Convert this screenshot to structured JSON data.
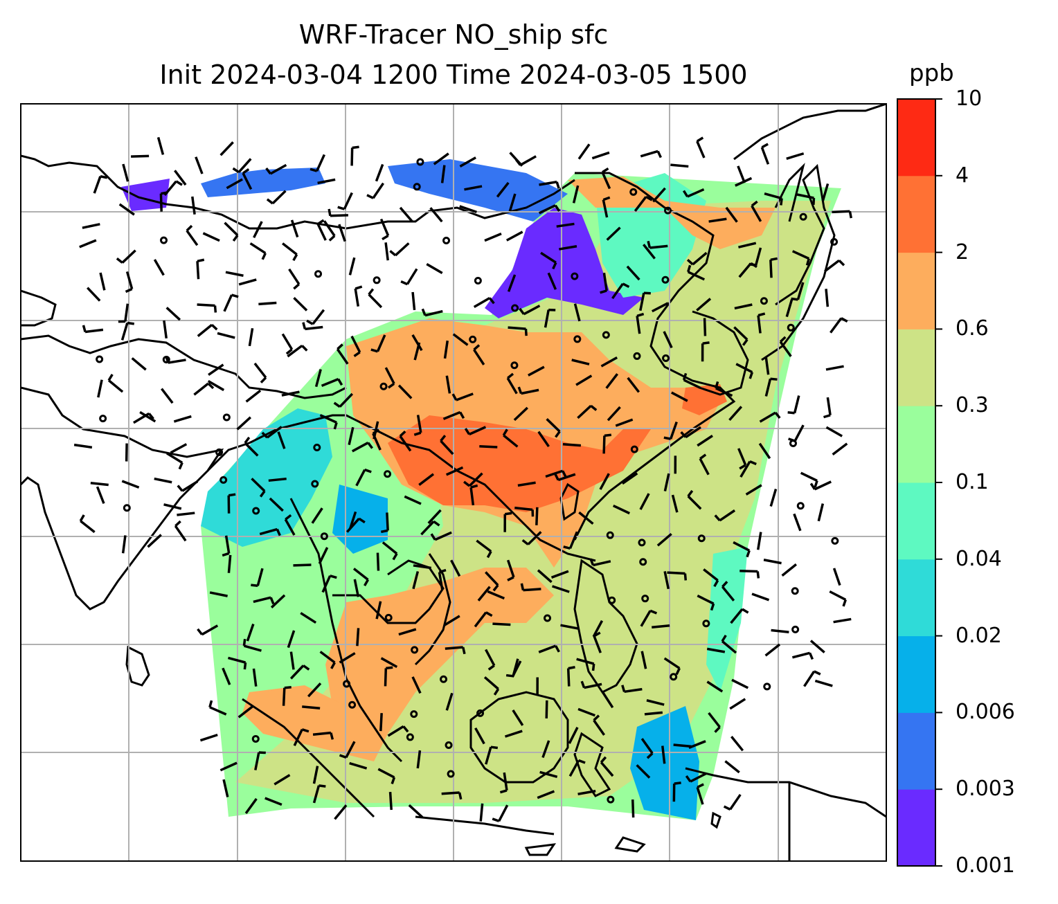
{
  "title": {
    "line1": "WRF-Tracer NO_ship sfc",
    "line2": "Init 2024-03-04 1200 Time 2024-03-05 1500"
  },
  "colorbar": {
    "unit": "ppb",
    "levels": [
      "0.001",
      "0.003",
      "0.006",
      "0.02",
      "0.04",
      "0.1",
      "0.3",
      "0.6",
      "2",
      "4",
      "10"
    ],
    "colors": [
      "#6a2bff",
      "#3575f2",
      "#06b0ea",
      "#2fdbd8",
      "#5ef9c1",
      "#9afe9c",
      "#cde386",
      "#fdad5d",
      "#ff7134",
      "#fe2a14"
    ]
  },
  "map": {
    "features": [
      "coastlines",
      "gridlines",
      "wind-barbs",
      "calm-circles",
      "tracer-concentration-field"
    ],
    "colors": {
      "gridline": "#b0b0b0",
      "coastline": "#000000"
    }
  }
}
